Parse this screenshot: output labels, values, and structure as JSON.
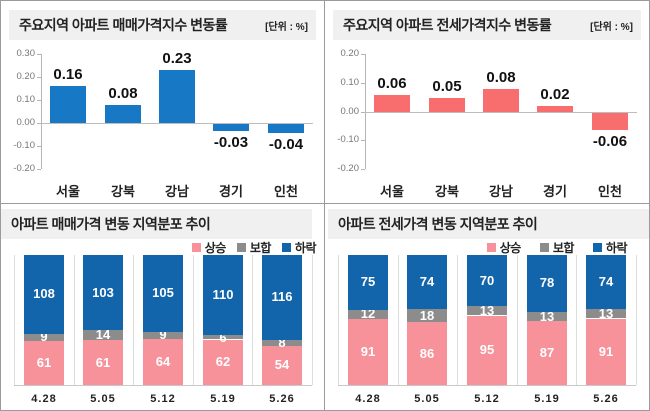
{
  "page": {
    "background": "#ffffff",
    "border_color": "#9b9b9b",
    "panel_title_bg": "#f0f0f0"
  },
  "chart_data": [
    {
      "id": "sale-index",
      "type": "bar",
      "title": "주요지역 아파트 매매가격지수 변동률",
      "unit_label": "[단위 : %]",
      "categories": [
        "서울",
        "강북",
        "강남",
        "경기",
        "인천"
      ],
      "values": [
        0.16,
        0.08,
        0.23,
        -0.03,
        -0.04
      ],
      "value_labels": [
        "0.16",
        "0.08",
        "0.23",
        "-0.03",
        "-0.04"
      ],
      "ylim": [
        -0.2,
        0.3
      ],
      "ystep": 0.1,
      "ytick_labels": [
        "0.30",
        "0.20",
        "0.10",
        "0.00",
        "-0.10",
        "-0.20"
      ],
      "bar_color": "#1779C6",
      "grid": "zero-line-only",
      "legend_position": "none"
    },
    {
      "id": "jeonse-index",
      "type": "bar",
      "title": "주요지역 아파트 전세가격지수 변동률",
      "unit_label": "[단위 : %]",
      "categories": [
        "서울",
        "강북",
        "강남",
        "경기",
        "인천"
      ],
      "values": [
        0.06,
        0.05,
        0.08,
        0.02,
        -0.06
      ],
      "value_labels": [
        "0.06",
        "0.05",
        "0.08",
        "0.02",
        "-0.06"
      ],
      "ylim": [
        -0.2,
        0.2
      ],
      "ystep": 0.1,
      "ytick_labels": [
        "0.20",
        "0.10",
        "0.00",
        "-0.10",
        "-0.20"
      ],
      "bar_color": "#F86E6E",
      "grid": "zero-line-only",
      "legend_position": "none"
    },
    {
      "id": "sale-distribution",
      "type": "stacked-bar",
      "title": "아파트 매매가격 변동 지역분포 추이",
      "categories": [
        "4.28",
        "5.05",
        "5.12",
        "5.19",
        "5.26"
      ],
      "legend": [
        "상승",
        "보합",
        "하락"
      ],
      "legend_position": "top-right",
      "series": [
        {
          "name": "상승",
          "color": "#F7919A",
          "values": [
            61,
            61,
            64,
            62,
            54
          ]
        },
        {
          "name": "보합",
          "color": "#8C8C8C",
          "values": [
            9,
            14,
            9,
            6,
            8
          ]
        },
        {
          "name": "하락",
          "color": "#1264AB",
          "values": [
            108,
            103,
            105,
            110,
            116
          ]
        }
      ],
      "column_totals": [
        178,
        178,
        178,
        178,
        178
      ]
    },
    {
      "id": "jeonse-distribution",
      "type": "stacked-bar",
      "title": "아파트 전세가격 변동 지역분포 추이",
      "categories": [
        "4.28",
        "5.05",
        "5.12",
        "5.19",
        "5.26"
      ],
      "legend": [
        "상승",
        "보합",
        "하락"
      ],
      "legend_position": "top-right",
      "series": [
        {
          "name": "상승",
          "color": "#F7919A",
          "values": [
            91,
            86,
            95,
            87,
            91
          ]
        },
        {
          "name": "보합",
          "color": "#8C8C8C",
          "values": [
            12,
            18,
            13,
            13,
            13
          ]
        },
        {
          "name": "하락",
          "color": "#1264AB",
          "values": [
            75,
            74,
            70,
            78,
            74
          ]
        }
      ],
      "column_totals": [
        178,
        178,
        178,
        178,
        178
      ]
    }
  ]
}
